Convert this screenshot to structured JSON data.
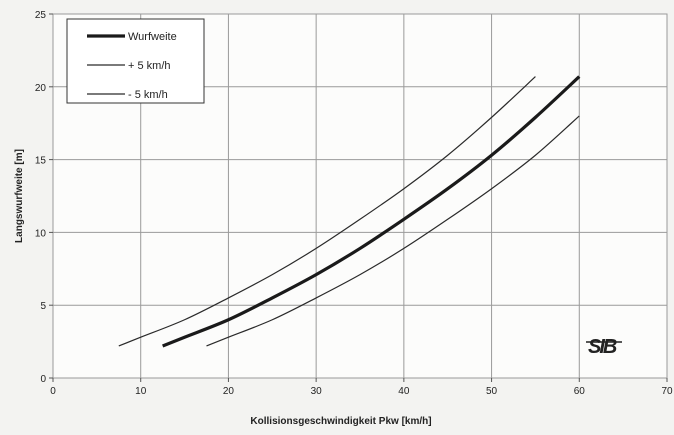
{
  "chart_data": {
    "type": "line",
    "title": "",
    "xlabel": "Kollisionsgeschwindigkeit Pkw [km/h]",
    "ylabel": "Langswurfweite [m]",
    "xlim": [
      0,
      70
    ],
    "ylim": [
      0,
      25
    ],
    "x_ticks": [
      "0",
      "10",
      "20",
      "30",
      "40",
      "50",
      "60",
      "70"
    ],
    "y_ticks": [
      "0",
      "5",
      "10",
      "15",
      "20",
      "25"
    ],
    "grid": true,
    "legend_position": "top-left",
    "series": [
      {
        "name": "Wurfweite",
        "line": "thick",
        "color": "#1a1a1a",
        "x": [
          12.5,
          15,
          20,
          25,
          30,
          35,
          40,
          45,
          50,
          55,
          60
        ],
        "y": [
          2.2,
          2.8,
          4.0,
          5.5,
          7.1,
          8.9,
          10.9,
          13.0,
          15.3,
          17.9,
          20.7
        ]
      },
      {
        "name": "+ 5 km/h",
        "line": "thin",
        "color": "#2a2a2a",
        "x": [
          7.5,
          10,
          15,
          20,
          25,
          30,
          35,
          40,
          45,
          50,
          55
        ],
        "y": [
          2.2,
          2.8,
          4.0,
          5.5,
          7.1,
          8.9,
          10.9,
          13.0,
          15.3,
          17.9,
          20.7
        ]
      },
      {
        "name": "- 5 km/h",
        "line": "thin",
        "color": "#2a2a2a",
        "x": [
          17.5,
          20,
          25,
          30,
          35,
          40,
          45,
          50,
          55,
          60
        ],
        "y": [
          2.2,
          2.8,
          4.0,
          5.5,
          7.1,
          8.9,
          10.9,
          13.0,
          15.3,
          18.0
        ]
      }
    ]
  },
  "logo": {
    "text": "SIB"
  }
}
